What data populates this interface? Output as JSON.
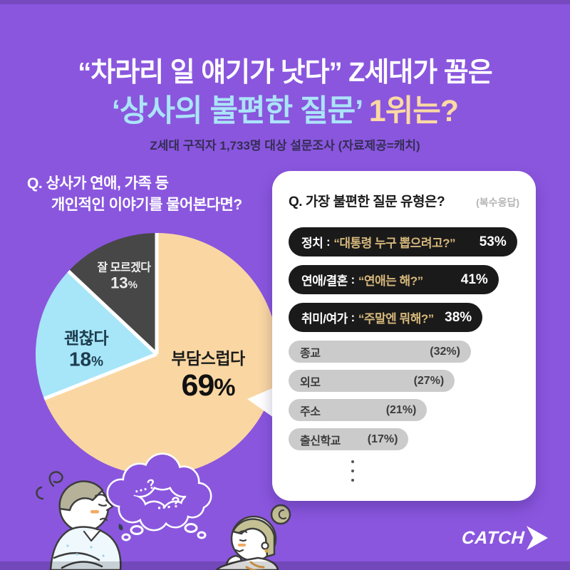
{
  "page": {
    "background_color": "#8A56DE"
  },
  "header": {
    "title_line1": "“차라리 일 얘기가 낫다” Z세대가 꼽은",
    "title_line2_highlight": "‘상사의 불편한 질문’",
    "title_line2_rest": " 1위는?",
    "subtitle": "Z세대 구직자 1,733명 대상 설문조사 (자료제공=캐치)",
    "title_highlight_color": "#ABE4F8",
    "title_rank_color": "#FBD9A3"
  },
  "left_question": {
    "prefix": "Q. ",
    "line1": "상사가 연애, 가족 등",
    "line2": "개인적인 이야기를 물어본다면?"
  },
  "chart_data": [
    {
      "type": "pie",
      "title": "Q. 상사가 연애, 가족 등 개인적인 이야기를 물어본다면?",
      "labels": [
        "부담스럽다",
        "괜찮다",
        "잘 모르겠다"
      ],
      "values": [
        69,
        18,
        13
      ],
      "unit": "%",
      "colors": [
        "#FAD7A2",
        "#A6E6F8",
        "#474747"
      ],
      "start_angle_deg": 0,
      "direction": "clockwise",
      "separator_color": "#ffffff",
      "label_position": "inside"
    },
    {
      "type": "bar",
      "orientation": "horizontal",
      "title": "Q. 가장 불편한 질문 유형은?",
      "note": "(복수응답)",
      "separator": " : ",
      "rows": [
        {
          "category": "정치",
          "quote": "“대통령 누구 뽑으려고?”",
          "value": 53,
          "display": "53%",
          "style": "emphasis",
          "width_pct": 99
        },
        {
          "category": "연애/결혼",
          "quote": "“연애는 해?”",
          "value": 41,
          "display": "41%",
          "style": "emphasis",
          "width_pct": 91
        },
        {
          "category": "취미/여가",
          "quote": "“주말엔 뭐해?”",
          "value": 38,
          "display": "38%",
          "style": "emphasis",
          "width_pct": 84
        },
        {
          "category": "종교",
          "quote": "",
          "value": 32,
          "display": "(32%)",
          "style": "muted",
          "width_pct": 79
        },
        {
          "category": "외모",
          "quote": "",
          "value": 27,
          "display": "(27%)",
          "style": "muted",
          "width_pct": 72
        },
        {
          "category": "주소",
          "quote": "",
          "value": 21,
          "display": "(21%)",
          "style": "muted",
          "width_pct": 60
        },
        {
          "category": "출신학교",
          "quote": "",
          "value": 17,
          "display": "(17%)",
          "style": "muted",
          "width_pct": 52
        }
      ],
      "emphasis_bar_color": "#1A1A1A",
      "muted_bar_color": "#CBCBCB",
      "quote_text_color": "#D5B77B"
    }
  ],
  "bubble": {
    "line1": "...?",
    "line2": "...?"
  },
  "footer": {
    "logo": "CATCH"
  },
  "icons": {
    "logo_arrow": "arrow-right-icon",
    "more_rows": "vertical-ellipsis",
    "bubble": "thought-bubble-icon"
  }
}
